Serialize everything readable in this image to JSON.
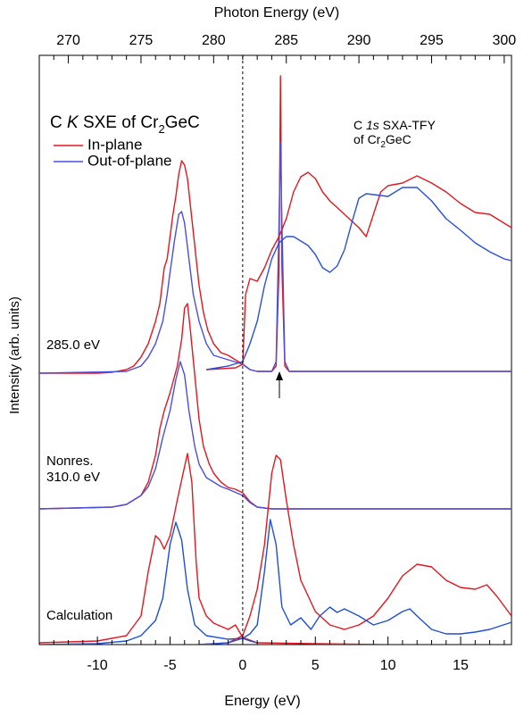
{
  "chart_data": {
    "type": "line",
    "title": [
      {
        "text": "C "
      },
      {
        "text": "K",
        "style": "italic"
      },
      {
        "text": " SXE of Cr"
      },
      {
        "text": "2",
        "style": "sub"
      },
      {
        "text": "GeC"
      }
    ],
    "annotation": [
      [
        {
          "text": "C "
        },
        {
          "text": "1s",
          "style": "italic"
        },
        {
          "text": " SXA-TFY"
        }
      ],
      [
        {
          "text": "of Cr"
        },
        {
          "text": "2",
          "style": "sub"
        },
        {
          "text": "GeC"
        }
      ]
    ],
    "group_labels": [
      "285.0 eV",
      "Nonres.",
      "310.0 eV",
      "Calculation"
    ],
    "xlabel": "Energy (eV)",
    "x2label": "Photon Energy (eV)",
    "ylabel": "Intensity (arb. units)",
    "xlim": [
      -14,
      18.5
    ],
    "x2lim": [
      268,
      300.5
    ],
    "ylim": [
      0,
      660
    ],
    "xticks": [
      -10,
      -5,
      0,
      5,
      10,
      15
    ],
    "xminor": [
      -14,
      -13,
      -12,
      -11,
      -9,
      -8,
      -7,
      -6,
      -4,
      -3,
      -2,
      -1,
      1,
      2,
      3,
      4,
      6,
      7,
      8,
      9,
      11,
      12,
      13,
      14,
      16,
      17,
      18
    ],
    "x2ticks": [
      270,
      275,
      280,
      285,
      290,
      295,
      300
    ],
    "x2minor": [
      268,
      269,
      271,
      272,
      273,
      274,
      276,
      277,
      278,
      279,
      281,
      282,
      283,
      284,
      286,
      287,
      288,
      289,
      291,
      292,
      293,
      294,
      296,
      297,
      298,
      299
    ],
    "reference_line": 0,
    "legend": [
      {
        "name": "In-plane",
        "color": "#e3171f"
      },
      {
        "name": "Out-of-plane",
        "color": "#4a4fe0"
      }
    ],
    "series": [
      {
        "color": "#e3171f",
        "x": [
          -14,
          -10,
          -9,
          -8,
          -7.5,
          -7,
          -6.5,
          -6,
          -5.7,
          -5.4,
          -5.2,
          -5,
          -4.8,
          -4.6,
          -4.4,
          -4.2,
          -4,
          -3.8,
          -3.5,
          -3.2,
          -3,
          -2.7,
          -2.4,
          -2,
          -1.5,
          -1,
          -0.5,
          0,
          0.5,
          1,
          2,
          2.3,
          2.5,
          2.6,
          2.7,
          2.9,
          3.2,
          18.5
        ],
        "values": [
          304,
          304,
          305,
          308,
          312,
          322,
          337,
          362,
          382,
          422,
          432,
          457,
          482,
          502,
          527,
          542,
          537,
          522,
          477,
          432,
          402,
          372,
          352,
          337,
          327,
          324,
          319,
          314,
          308,
          306,
          306,
          312,
          422,
          637,
          422,
          312,
          306,
          306
        ]
      },
      {
        "color": "#4a4fe0",
        "x": [
          -14,
          -8,
          -7,
          -6.5,
          -6,
          -5.5,
          -5.2,
          -5,
          -4.7,
          -4.4,
          -4.2,
          -4,
          -3.7,
          -3.4,
          -3,
          -2.5,
          -2,
          -1,
          0,
          0.5,
          1,
          2,
          2.3,
          2.5,
          2.6,
          2.7,
          2.9,
          3.2,
          18.5
        ],
        "values": [
          304,
          306,
          312,
          322,
          337,
          362,
          392,
          417,
          452,
          482,
          485,
          472,
          432,
          392,
          362,
          337,
          324,
          319,
          314,
          308,
          306,
          306,
          317,
          472,
          562,
          472,
          317,
          306,
          306
        ]
      },
      {
        "color": "#e3171f",
        "axis": "x2",
        "x": [
          279.5,
          280.5,
          281.5,
          282,
          282.2,
          282.5,
          283,
          283.5,
          284,
          284.5,
          285,
          285.5,
          286,
          286.5,
          287,
          287.5,
          288,
          289,
          290,
          290.5,
          291,
          291.5,
          292,
          293,
          294,
          295,
          296,
          297,
          298,
          299,
          300,
          300.5
        ],
        "values": [
          308,
          309,
          310,
          314,
          392,
          410,
          407,
          422,
          442,
          457,
          477,
          507,
          524,
          529,
          522,
          507,
          497,
          482,
          467,
          457,
          482,
          507,
          514,
          517,
          525,
          517,
          507,
          494,
          484,
          482,
          472,
          467
        ]
      },
      {
        "color": "#2a4fe0",
        "axis": "x2",
        "x": [
          279.5,
          281,
          282,
          282.5,
          283,
          283.5,
          284,
          284.5,
          285,
          285.5,
          286,
          286.5,
          287,
          287.5,
          288,
          288.5,
          289,
          289.5,
          290,
          290.5,
          291,
          292,
          293,
          294,
          295,
          296,
          297,
          298,
          299,
          300,
          300.5
        ],
        "values": [
          308,
          312,
          317,
          337,
          362,
          402,
          432,
          450,
          457,
          457,
          452,
          447,
          437,
          422,
          417,
          424,
          442,
          472,
          500,
          505,
          504,
          502,
          512,
          512,
          497,
          477,
          464,
          450,
          440,
          432,
          430
        ]
      },
      {
        "color": "#e3171f",
        "x": [
          -14,
          -9,
          -8,
          -7,
          -6.5,
          -6,
          -5.7,
          -5.4,
          -5,
          -4.5,
          -4.2,
          -4,
          -3.8,
          -3.6,
          -3.3,
          -3,
          -2.7,
          -2.3,
          -2,
          -1.5,
          -1,
          -0.5,
          0,
          0.5,
          1,
          2,
          18.5
        ],
        "values": [
          152,
          154,
          157,
          167,
          182,
          212,
          242,
          262,
          282,
          312,
          342,
          377,
          382,
          352,
          302,
          252,
          222,
          202,
          192,
          182,
          176,
          174,
          170,
          160,
          154,
          152,
          152
        ]
      },
      {
        "color": "#4a4fe0",
        "x": [
          -14,
          -9,
          -8,
          -7,
          -6.5,
          -6,
          -5.5,
          -5,
          -4.6,
          -4.3,
          -4,
          -3.7,
          -3.3,
          -3,
          -2.5,
          -2,
          -1.5,
          -1,
          0,
          0.5,
          1,
          2,
          18.5
        ],
        "values": [
          152,
          154,
          157,
          167,
          177,
          197,
          232,
          262,
          297,
          317,
          302,
          262,
          222,
          202,
          187,
          182,
          177,
          174,
          167,
          159,
          154,
          152,
          152
        ]
      },
      {
        "color": "#e3171f",
        "x": [
          -14,
          -10,
          -8,
          -7,
          -6.5,
          -6,
          -5.7,
          -5.4,
          -5,
          -4.5,
          -4.1,
          -3.8,
          -3.5,
          -3.2,
          -3,
          -2.5,
          -2,
          -1,
          -0.5,
          0,
          1,
          5,
          9.8
        ],
        "values": [
          2,
          4,
          10,
          32,
          82,
          122,
          117,
          107,
          122,
          162,
          192,
          214,
          182,
          92,
          52,
          32,
          24,
          17,
          22,
          8,
          2,
          1,
          0
        ]
      },
      {
        "color": "#1f4fd6",
        "x": [
          -14,
          -10,
          -8,
          -7,
          -6,
          -5.5,
          -5,
          -4.6,
          -4.2,
          -3.8,
          -3.3,
          -2.5,
          -1,
          0,
          0.5,
          1
        ],
        "values": [
          0,
          1,
          4,
          10,
          27,
          52,
          112,
          137,
          117,
          62,
          22,
          10,
          6,
          7,
          4,
          2
        ]
      },
      {
        "color": "#e3171f",
        "x": [
          -3,
          -1,
          0,
          0.5,
          1,
          1.5,
          2,
          2.3,
          2.6,
          3,
          3.5,
          4,
          5,
          6,
          7,
          8,
          9,
          10,
          11,
          12,
          13,
          14,
          15,
          16,
          16.8,
          17.5,
          18.5
        ],
        "values": [
          0,
          2,
          10,
          32,
          62,
          112,
          192,
          212,
          207,
          162,
          112,
          72,
          37,
          22,
          17,
          22,
          32,
          52,
          77,
          90,
          87,
          72,
          64,
          62,
          67,
          54,
          32
        ]
      },
      {
        "color": "#1f4fd6",
        "x": [
          -3,
          -1,
          0,
          0.5,
          1,
          1.5,
          1.9,
          2.3,
          2.7,
          3.3,
          4,
          4.7,
          5.3,
          6,
          6.5,
          7,
          8,
          9,
          10,
          11,
          11.5,
          12,
          13,
          14,
          15,
          16,
          17,
          18.5
        ],
        "values": [
          0,
          2,
          7,
          12,
          22,
          82,
          140,
          112,
          42,
          22,
          30,
          17,
          32,
          42,
          36,
          40,
          32,
          22,
          27,
          37,
          40,
          32,
          17,
          12,
          12,
          14,
          17,
          25
        ]
      }
    ]
  }
}
